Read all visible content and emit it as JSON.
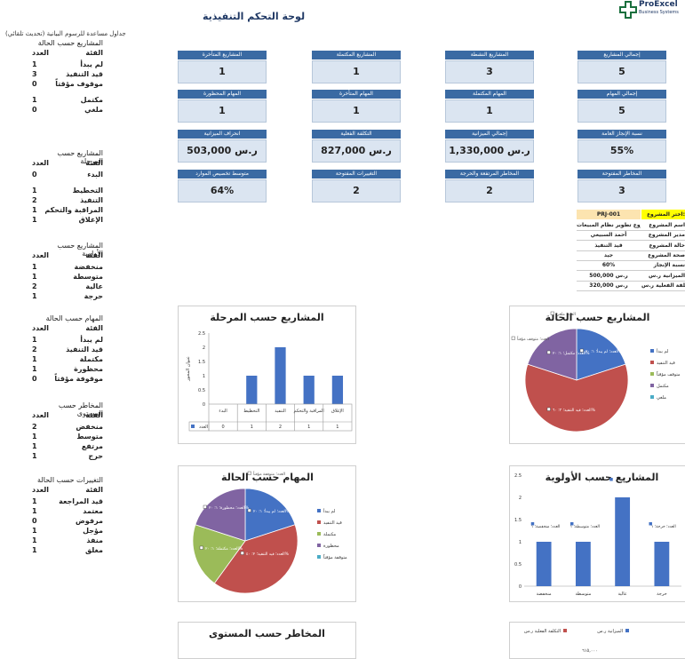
{
  "header": {
    "title": "لوحة التحكم التنفيذية",
    "logo_name": "ProExcel",
    "logo_sub": "Business Systems"
  },
  "sidebar": {
    "note": "جداول مساعدة للرسوم البيانية (تحديث تلقائي)",
    "sections": [
      {
        "title": "المشاريع حسب الحالة",
        "h_label": "الفئة",
        "h_value": "العدد",
        "rows": [
          {
            "label": "لم يبدأ",
            "value": "1"
          },
          {
            "label": "قيد التنفيذ",
            "value": "3"
          },
          {
            "label": "موقوف مؤقتاً",
            "value": "0"
          },
          {
            "label": "مكتمل",
            "value": "1"
          },
          {
            "label": "ملغي",
            "value": "0"
          }
        ]
      },
      {
        "title": "المشاريع حسب المرحلة",
        "h_label": "الفئة",
        "h_value": "العدد",
        "rows": [
          {
            "label": "البدء",
            "value": "0"
          },
          {
            "label": "التخطيط",
            "value": "1"
          },
          {
            "label": "التنفيذ",
            "value": "2"
          },
          {
            "label": "المراقبة والتحكم",
            "value": "1"
          },
          {
            "label": "الإغلاق",
            "value": "1"
          }
        ]
      },
      {
        "title": "المشاريع حسب الأولوية",
        "h_label": "الفئة",
        "h_value": "العدد",
        "rows": [
          {
            "label": "منخفضة",
            "value": "1"
          },
          {
            "label": "متوسطة",
            "value": "1"
          },
          {
            "label": "عالية",
            "value": "2"
          },
          {
            "label": "حرجة",
            "value": "1"
          }
        ]
      },
      {
        "title": "المهام حسب الحالة",
        "h_label": "الفئة",
        "h_value": "العدد",
        "rows": [
          {
            "label": "لم يبدأ",
            "value": "1"
          },
          {
            "label": "قيد التنفيذ",
            "value": "2"
          },
          {
            "label": "مكتملة",
            "value": "1"
          },
          {
            "label": "محظورة",
            "value": "1"
          },
          {
            "label": "موقوفة مؤقتاً",
            "value": "0"
          }
        ]
      },
      {
        "title": "المخاطر حسب المستوى",
        "h_label": "الفئة",
        "h_value": "العدد",
        "rows": [
          {
            "label": "منخفض",
            "value": "2"
          },
          {
            "label": "متوسط",
            "value": "1"
          },
          {
            "label": "مرتفع",
            "value": "1"
          },
          {
            "label": "حرج",
            "value": "1"
          }
        ]
      },
      {
        "title": "التغييرات حسب الحالة",
        "h_label": "الفئة",
        "h_value": "العدد",
        "rows": [
          {
            "label": "قيد المراجعة",
            "value": "1"
          },
          {
            "label": "معتمد",
            "value": "1"
          },
          {
            "label": "مرفوض",
            "value": "0"
          },
          {
            "label": "مؤجل",
            "value": "1"
          },
          {
            "label": "منفذ",
            "value": "1"
          },
          {
            "label": "مغلق",
            "value": "1"
          }
        ]
      }
    ]
  },
  "kpis": [
    {
      "title": "إجمالي المشاريع",
      "value": "5"
    },
    {
      "title": "المشاريع النشطة",
      "value": "3"
    },
    {
      "title": "المشاريع المكتملة",
      "value": "1"
    },
    {
      "title": "المشاريع المتأخرة",
      "value": "1"
    },
    {
      "title": "إجمالي المهام",
      "value": "5"
    },
    {
      "title": "المهام المكتملة",
      "value": "1"
    },
    {
      "title": "المهام المتأخرة",
      "value": "1"
    },
    {
      "title": "المهام المحظورة",
      "value": "1"
    },
    {
      "title": "نسبة الإنجاز العامة",
      "value": "55%"
    },
    {
      "title": "إجمالي الميزانية",
      "value": "ر.س 1,330,000"
    },
    {
      "title": "التكلفة الفعلية",
      "value": "ر.س 827,000"
    },
    {
      "title": "انحراف الميزانية",
      "value": "ر.س 503,000"
    },
    {
      "title": "المخاطر المفتوحة",
      "value": "3"
    },
    {
      "title": "المخاطر المرتفعة والحرجة",
      "value": "2"
    },
    {
      "title": "التغييرات المفتوحة",
      "value": "2"
    },
    {
      "title": "متوسط تخصيص الموارد",
      "value": "64%"
    }
  ],
  "project": {
    "select_label": "اختر المشروع:",
    "select_value": "PRJ-001",
    "rows": [
      {
        "k": "اسم المشروع",
        "v": "مشروع تطوير نظام المبيعات"
      },
      {
        "k": "مدير المشروع",
        "v": "أحمد السبيعي"
      },
      {
        "k": "حالة المشروع",
        "v": "قيد التنفيذ"
      },
      {
        "k": "صحة المشروع",
        "v": "جيد"
      },
      {
        "k": "نسبة الإنجاز",
        "v": "60%"
      },
      {
        "k": "الميزانية ر.س",
        "v": "500,000 ر.س"
      },
      {
        "k": "التكلفة الفعلية ر.س",
        "v": "320,000 ر.س"
      }
    ]
  },
  "colors": {
    "blue": "#4472c4",
    "red": "#c0504d",
    "green": "#9bbb59",
    "purple": "#8064a2",
    "cyan": "#4bacc6",
    "kpi_head": "#3a6aa3",
    "kpi_body": "#dbe5f1"
  },
  "chart_data": [
    {
      "type": "bar",
      "title": "المشاريع حسب المرحلة",
      "ylabel": "عنوان المحور",
      "ylim": [
        0,
        2.5
      ],
      "categories": [
        "البدء",
        "التخطيط",
        "التنفيذ",
        "المراقبة والتحكم",
        "الإغلاق"
      ],
      "series": [
        {
          "name": "العدد",
          "values": [
            0,
            1,
            2,
            1,
            1
          ]
        }
      ],
      "table_legend": "العدد",
      "ticks": [
        "0",
        "0.5",
        "1",
        "1.5",
        "2",
        "2.5"
      ]
    },
    {
      "type": "pie",
      "title": "المشاريع حسب الحالة",
      "categories": [
        "لم يبدأ",
        "قيد التنفيذ",
        "متوقف مؤقتاً",
        "مكتمل",
        "ملغي"
      ],
      "values": [
        1,
        3,
        0,
        1,
        0
      ],
      "labels": [
        "العدد؛ لم يبدأ؛ ١؛ ٢٠%",
        "العدد؛ قيد التنفيذ؛ ٣؛ ٦٠%",
        "العدد؛ مكتمل؛ ١؛ ٢٠%",
        "العدد؛ متوقف مؤقتاً",
        "العدد؛ ملغي"
      ]
    },
    {
      "type": "pie",
      "title": "المهام حسب الحالة",
      "categories": [
        "لم يبدأ",
        "قيد التنفيذ",
        "مكتملة",
        "محظورة",
        "متوقفة مؤقتاً"
      ],
      "values": [
        1,
        2,
        1,
        1,
        0
      ],
      "labels": [
        "العدد؛ لم يبدأ؛ ١؛ ٢٠%",
        "العدد؛ قيد التنفيذ؛ ٢؛ ٤٠%",
        "العدد؛ مكتملة؛ ١؛ ٢٠%",
        "العدد؛ محظورة؛ ١؛ ٢٠%",
        "العدد؛ متوقفة مؤقتاً"
      ]
    },
    {
      "type": "bar",
      "title": "المشاريع حسب الأولوية",
      "ylim": [
        0,
        2.5
      ],
      "categories": [
        "منخفضة",
        "متوسطة",
        "عالية",
        "حرجة"
      ],
      "series": [
        {
          "name": "العدد",
          "values": [
            1,
            1,
            2,
            1
          ]
        }
      ],
      "labels": [
        "العدد؛ منخفضة؛ ١",
        "العدد؛ متوسطة؛ ١",
        "٢",
        "العدد؛ حرجة؛ ١"
      ],
      "ticks": [
        "0",
        "0.5",
        "1",
        "1.5",
        "2",
        "2.5"
      ]
    },
    {
      "type": "bar",
      "title": "المخاطر حسب المستوى"
    },
    {
      "type": "bar",
      "legend": [
        "الميزانية ر.س",
        "التكلفة الفعلية ر.س"
      ],
      "top_label": "٦١٥,٠٠٠"
    }
  ]
}
